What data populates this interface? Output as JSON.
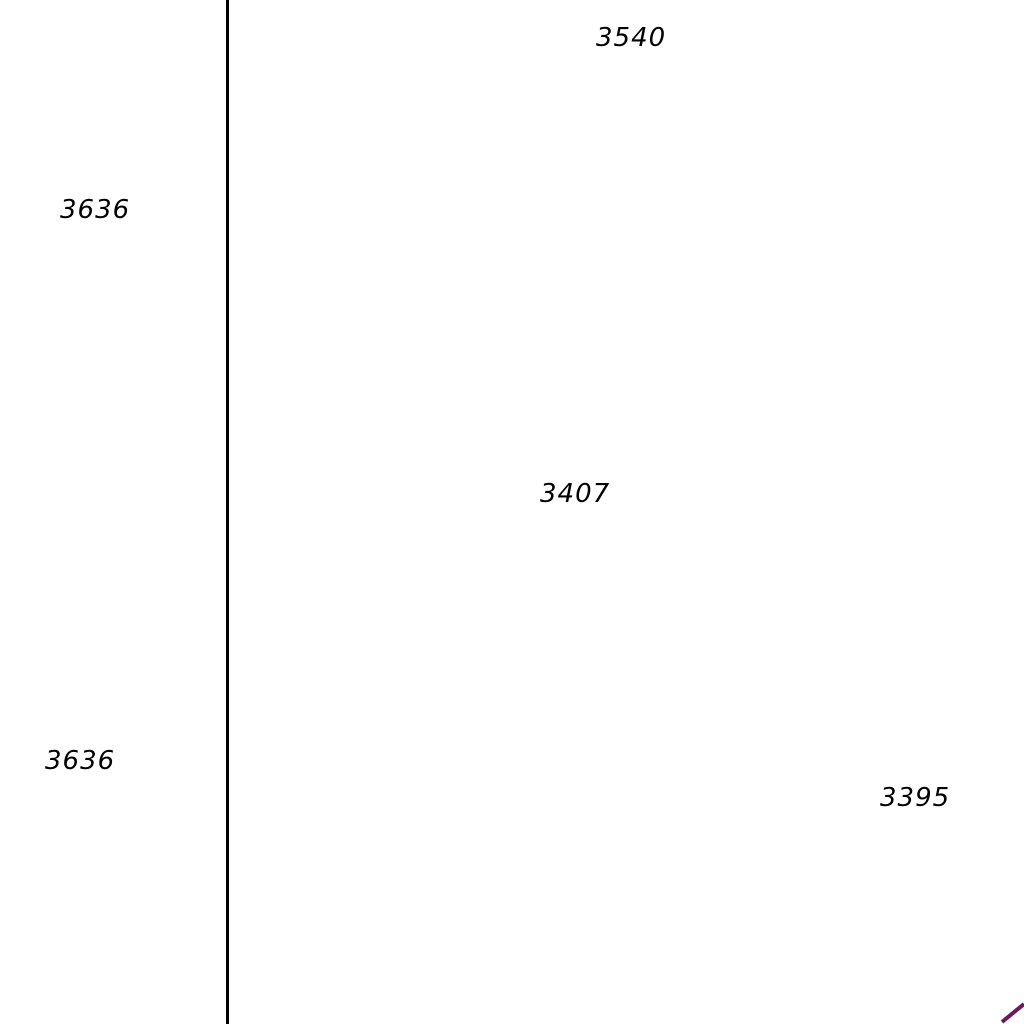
{
  "map": {
    "background_color": "#ffffff",
    "boundary_line_color": "#000000",
    "feature_line_color": "#6b1a5c",
    "labels": [
      {
        "text": "3540"
      },
      {
        "text": "3636"
      },
      {
        "text": "3407"
      },
      {
        "text": "3636"
      },
      {
        "text": "3395"
      }
    ]
  }
}
